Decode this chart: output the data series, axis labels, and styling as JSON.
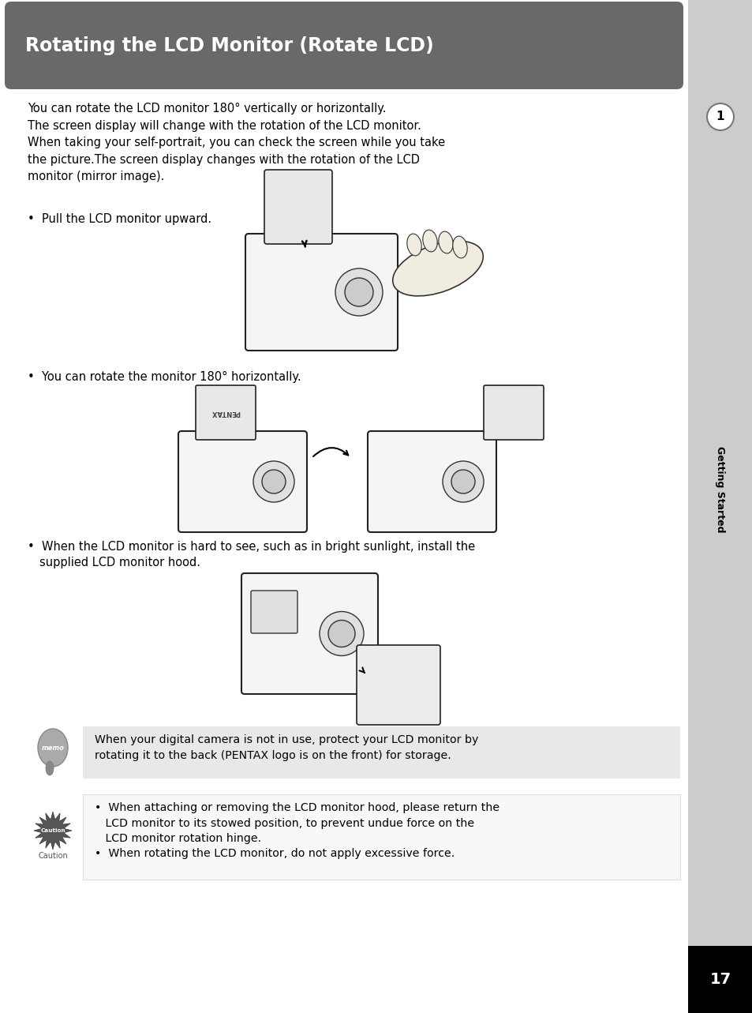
{
  "title": "Rotating the LCD Monitor (Rotate LCD)",
  "title_bg_color": "#696969",
  "title_text_color": "#ffffff",
  "page_bg": "#ffffff",
  "sidebar_color": "#cccccc",
  "page_num": "17",
  "page_num_bg": "#000000",
  "chapter_num": "1",
  "chapter_label": "Getting Started",
  "body_font_size": 10.5,
  "intro_text": "You can rotate the LCD monitor 180° vertically or horizontally.\nThe screen display will change with the rotation of the LCD monitor.\nWhen taking your self-portrait, you can check the screen while you take\nthe picture.The screen display changes with the rotation of the LCD\nmonitor (mirror image).",
  "bullet1": "Pull the LCD monitor upward.",
  "bullet2": "You can rotate the monitor 180° horizontally.",
  "bullet3_line1": "When the LCD monitor is hard to see, such as in bright sunlight, install the",
  "bullet3_line2": "supplied LCD monitor hood.",
  "memo_bg": "#e8e8e8",
  "memo_text": "When your digital camera is not in use, protect your LCD monitor by\nrotating it to the back (PENTAX logo is on the front) for storage.",
  "caution_text1_line1": "When attaching or removing the LCD monitor hood, please return the",
  "caution_text1_line2": "LCD monitor to its stowed position, to prevent undue force on the",
  "caution_text1_line3": "LCD monitor rotation hinge.",
  "caution_text2": "When rotating the LCD monitor, do not apply excessive force."
}
